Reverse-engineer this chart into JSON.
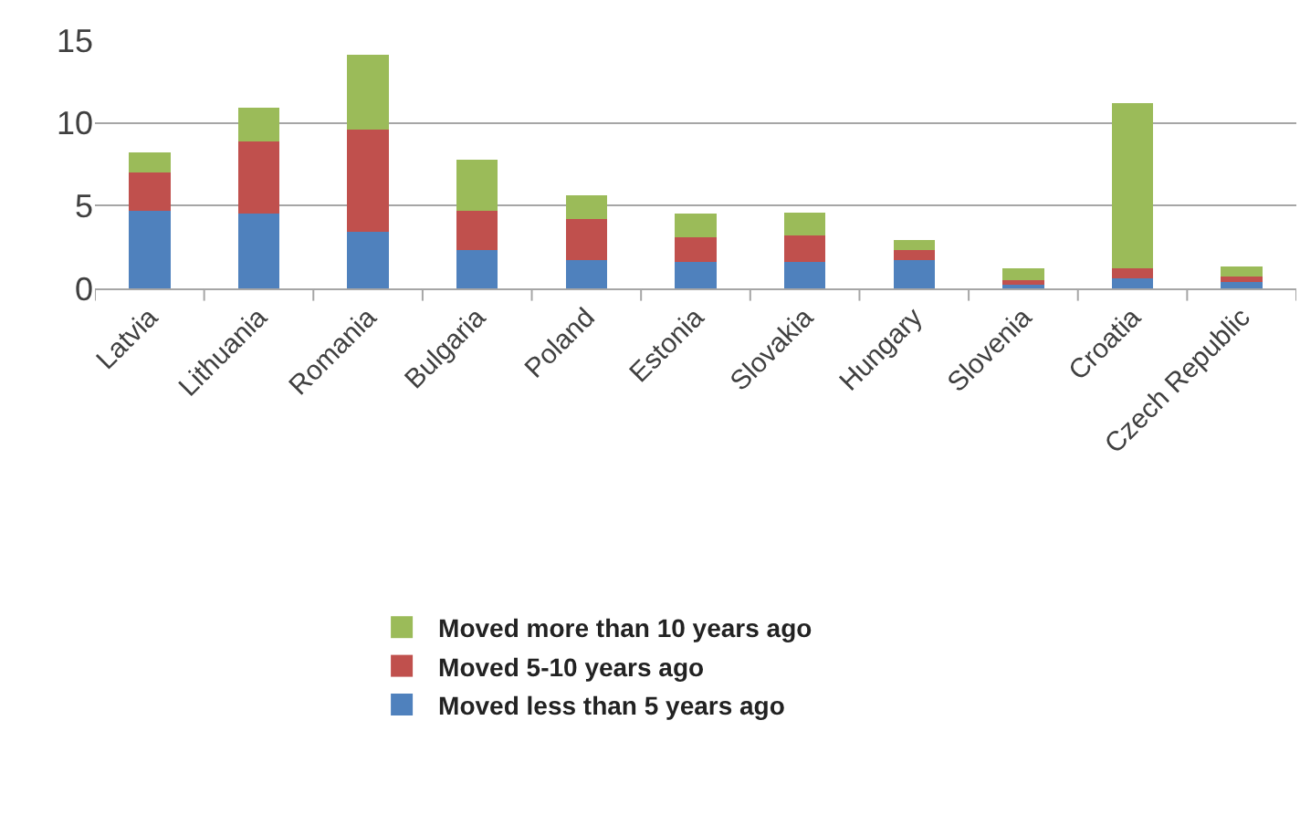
{
  "chart_data": {
    "type": "bar",
    "stacked": true,
    "categories": [
      "Latvia",
      "Lithuania",
      "Romania",
      "Bulgaria",
      "Poland",
      "Estonia",
      "Slovakia",
      "Hungary",
      "Slovenia",
      "Croatia",
      "Czech Republic"
    ],
    "series": [
      {
        "name": "Moved less than 5 years ago",
        "color": "#4f81bd",
        "values": [
          4.7,
          4.5,
          3.4,
          2.3,
          1.7,
          1.6,
          1.6,
          1.7,
          0.3,
          0.6,
          0.4
        ]
      },
      {
        "name": "Moved 5-10 years ago",
        "color": "#c0504d",
        "values": [
          2.3,
          4.4,
          6.2,
          2.4,
          2.5,
          1.5,
          1.6,
          0.6,
          0.2,
          0.6,
          0.3
        ]
      },
      {
        "name": "Moved more than 10 years ago",
        "color": "#9bbb59",
        "values": [
          1.2,
          2.0,
          4.5,
          3.1,
          1.4,
          1.4,
          1.4,
          0.6,
          0.7,
          10.0,
          0.6
        ]
      }
    ],
    "ylim": [
      0,
      15
    ],
    "yticks": [
      0,
      5,
      10,
      15
    ],
    "grid": "y",
    "legend": "bottom"
  }
}
